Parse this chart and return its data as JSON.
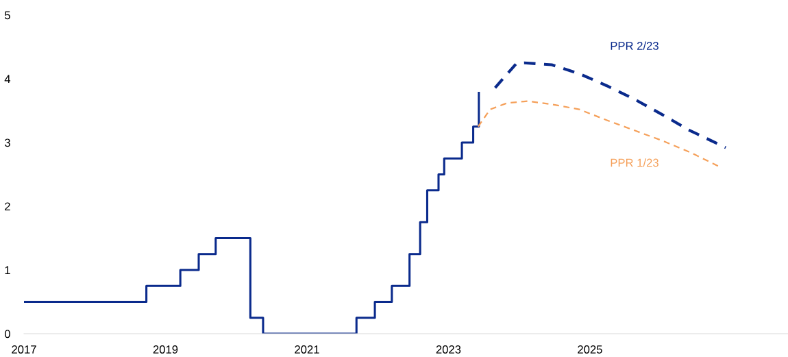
{
  "chart_data": {
    "type": "line",
    "xlim": [
      2017,
      2027.8
    ],
    "xticks": [
      2017,
      2019,
      2021,
      2023,
      2025
    ],
    "ylim": [
      0,
      5
    ],
    "yticks": [
      0,
      1,
      2,
      3,
      4,
      5
    ],
    "grid": false,
    "legend": false,
    "series": [
      {
        "type": "step",
        "color": "#0a2a8c",
        "line_style": "solid",
        "x": [
          2017.0,
          2018.73,
          2019.21,
          2019.47,
          2019.71,
          2020.2,
          2020.38,
          2021.7,
          2021.96,
          2022.2,
          2022.45,
          2022.6,
          2022.7,
          2022.86,
          2022.94,
          2023.19,
          2023.35,
          2023.43
        ],
        "values": [
          0.5,
          0.75,
          1.0,
          1.25,
          1.5,
          0.25,
          0.0,
          0.25,
          0.5,
          0.75,
          1.25,
          1.75,
          2.25,
          2.5,
          2.75,
          3.0,
          3.25,
          3.78
        ]
      },
      {
        "name": "PPR 2/23",
        "color": "#0a2a8c",
        "line_style": "dashed",
        "x": [
          2023.66,
          2023.96,
          2024.07,
          2024.46,
          2024.85,
          2025.24,
          2025.63,
          2026.02,
          2026.41,
          2026.92
        ],
        "values": [
          3.86,
          4.24,
          4.25,
          4.22,
          4.08,
          3.89,
          3.68,
          3.44,
          3.19,
          2.92
        ]
      },
      {
        "name": "PPR 1/23",
        "color": "#f5a05a",
        "line_style": "dashed",
        "x": [
          2023.42,
          2023.59,
          2023.83,
          2024.12,
          2024.46,
          2024.85,
          2025.24,
          2025.63,
          2026.02,
          2026.41,
          2026.85
        ],
        "values": [
          3.25,
          3.52,
          3.62,
          3.65,
          3.6,
          3.52,
          3.35,
          3.19,
          3.03,
          2.85,
          2.61
        ]
      }
    ]
  }
}
